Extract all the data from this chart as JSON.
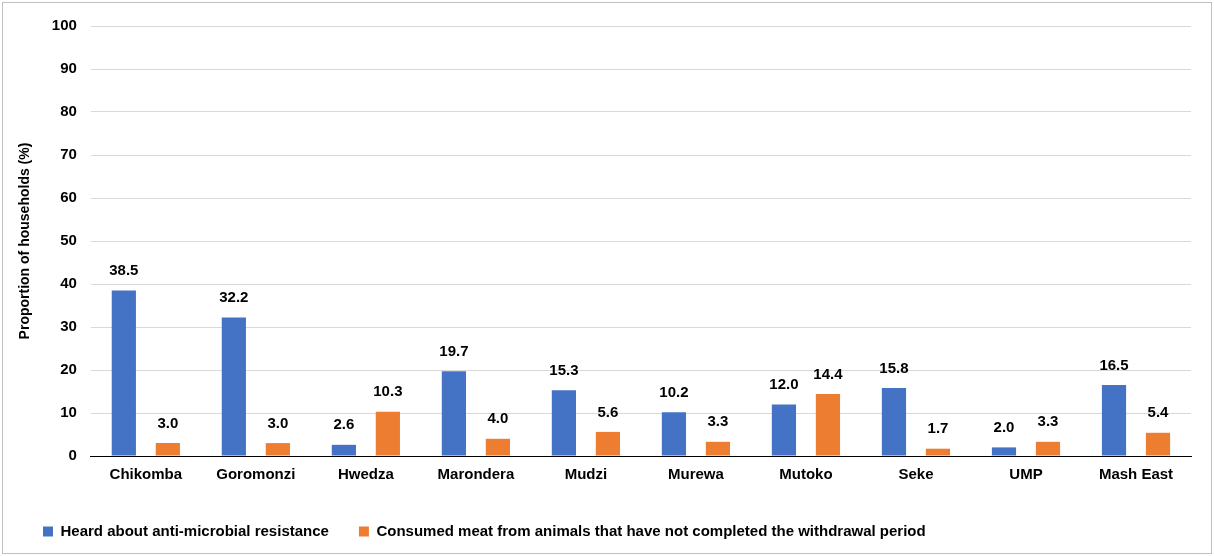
{
  "chart_data": {
    "type": "bar",
    "ylabel": "Proportion of households (%)",
    "categories": [
      "Chikomba",
      "Goromonzi",
      "Hwedza",
      "Marondera",
      "Mudzi",
      "Murewa",
      "Mutoko",
      "Seke",
      "UMP",
      "Mash East"
    ],
    "series": [
      {
        "name": "Heard about anti-microbial resistance",
        "color": "#4472c4",
        "values": [
          38.5,
          32.2,
          2.6,
          19.7,
          15.3,
          10.2,
          12.0,
          15.8,
          2.0,
          16.5
        ],
        "value_labels": [
          "38.5",
          "32.2",
          "2.6",
          "19.7",
          "15.3",
          "10.2",
          "12.0",
          "15.8",
          "2.0",
          "16.5"
        ]
      },
      {
        "name": "Consumed meat from animals that have not completed the withdrawal period",
        "color": "#ed7d31",
        "values": [
          3.0,
          3.0,
          10.3,
          4.0,
          5.6,
          3.3,
          14.4,
          1.7,
          3.3,
          5.4
        ],
        "value_labels": [
          "3.0",
          "3.0",
          "10.3",
          "4.0",
          "5.6",
          "3.3",
          "14.4",
          "1.7",
          "3.3",
          "5.4"
        ]
      }
    ],
    "ylim": [
      0,
      100
    ],
    "yticks": [
      0,
      10,
      20,
      30,
      40,
      50,
      60,
      70,
      80,
      90,
      100
    ],
    "grid": "y",
    "legend": "bottom"
  }
}
